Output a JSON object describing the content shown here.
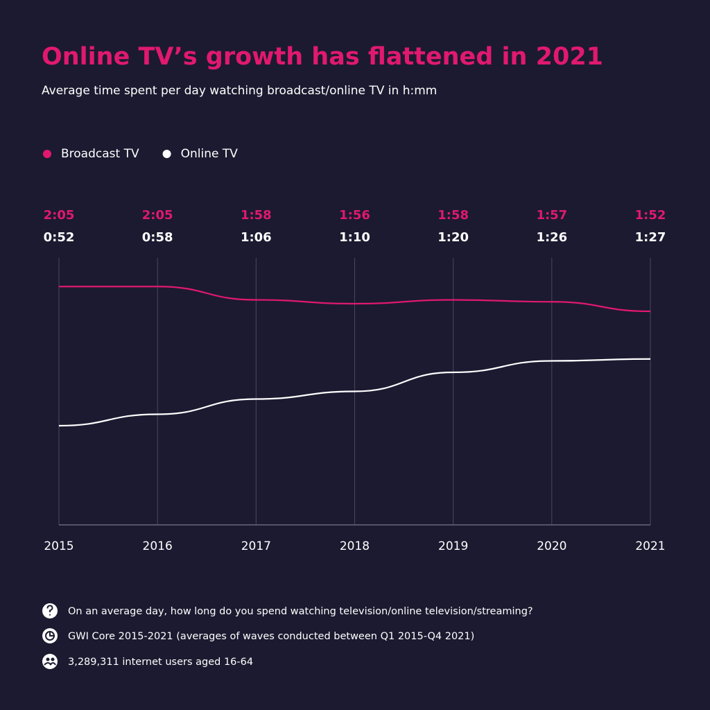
{
  "chart_data": {
    "type": "line",
    "title": "Online TV’s growth has flattened in 2021",
    "subtitle": "Average time spent per day watching broadcast/online TV in h:mm",
    "categories": [
      "2015",
      "2016",
      "2017",
      "2018",
      "2019",
      "2020",
      "2021"
    ],
    "series": [
      {
        "name": "Broadcast TV",
        "color": "#e0196f",
        "values": [
          125,
          125,
          118,
          116,
          118,
          117,
          112
        ],
        "value_labels": [
          "2:05",
          "2:05",
          "1:58",
          "1:56",
          "1:58",
          "1:57",
          "1:52"
        ]
      },
      {
        "name": "Online TV",
        "color": "#ffffff",
        "values": [
          52,
          58,
          66,
          70,
          80,
          86,
          87
        ],
        "value_labels": [
          "0:52",
          "0:58",
          "1:06",
          "1:10",
          "1:20",
          "1:26",
          "1:27"
        ]
      }
    ],
    "ylim": [
      0,
      140
    ],
    "grid": true,
    "legend": "top-left"
  },
  "footer": {
    "notes": [
      "On an average day, how long do you spend watching television/online television/streaming?",
      "GWI Core 2015-2021 (averages of waves conducted between Q1 2015-Q4 2021)",
      "3,289,311 internet users aged 16-64"
    ]
  }
}
